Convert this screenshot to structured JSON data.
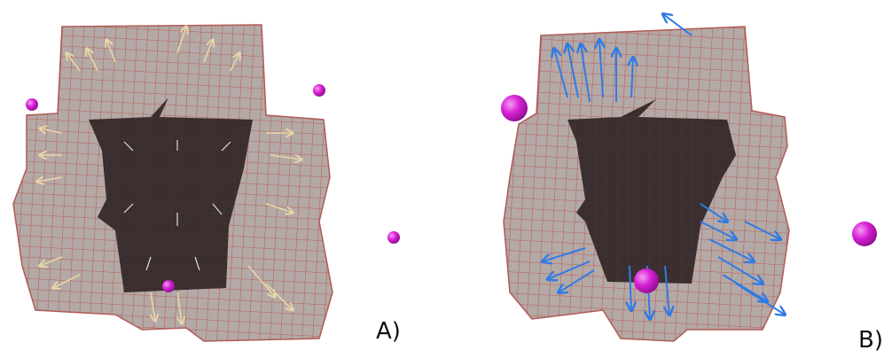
{
  "panels": [
    {
      "label": "A)"
    },
    {
      "label": "B)"
    }
  ]
}
